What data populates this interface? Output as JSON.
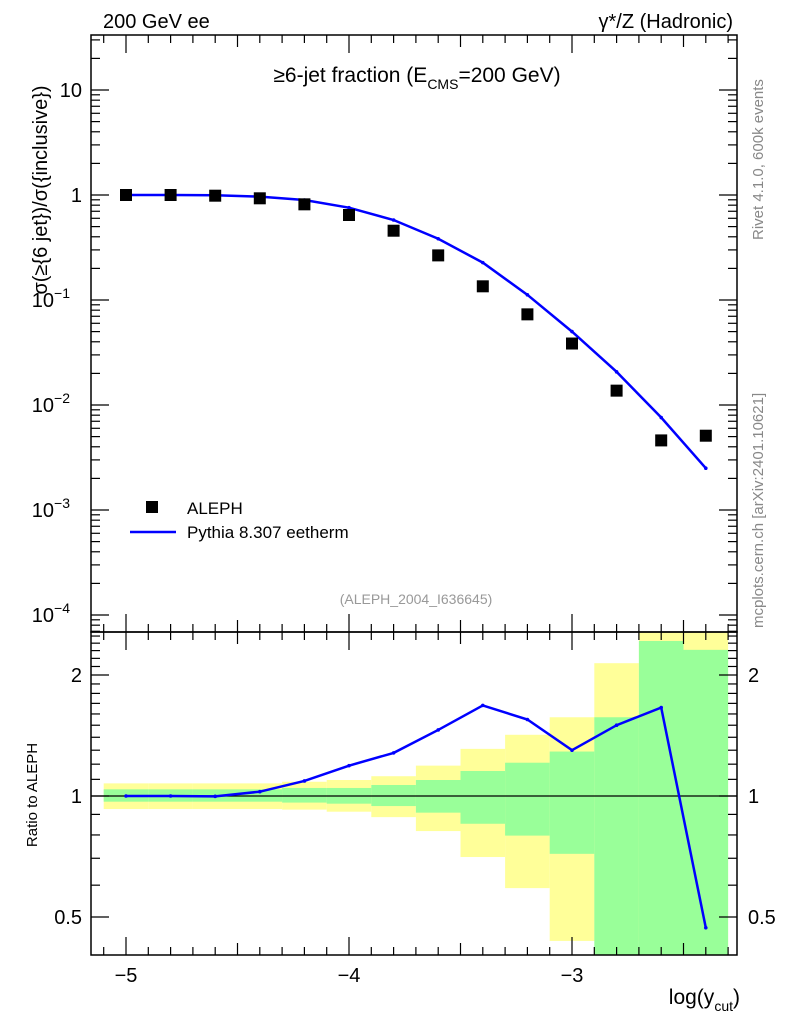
{
  "header": {
    "left_label": "200 GeV ee",
    "right_label": "γ*/Z (Hadronic)"
  },
  "side_labels": {
    "rivet": "Rivet 4.1.0,  600k events",
    "mcplots": "mcplots.cern.ch [arXiv:2401.10621]"
  },
  "colors": {
    "data": "#000000",
    "mc": "#0000ff",
    "band_total": "#ffff99",
    "band_stat": "#99ff99"
  },
  "chart_data": [
    {
      "type": "scatter",
      "title": "≥6-jet fraction (E",
      "title_sub": "CMS",
      "title_tail": "=200 GeV)",
      "ylabel": "σ(≥{6 jet})/σ({inclusive})",
      "xlabel": "log(y",
      "xlabel_sub": "cut",
      "xlabel_tail": ")",
      "yscale": "log",
      "ylim": [
        6e-05,
        33
      ],
      "xlim": [
        -5.157,
        -2.26
      ],
      "watermark": "(ALEPH_2004_I636645)",
      "legend_position": "bottom-left",
      "x_ticks": [
        "−5",
        "−4",
        "−3"
      ],
      "y_ticks": [
        {
          "base": "10",
          "exp": "−4"
        },
        {
          "base": "10",
          "exp": "−3"
        },
        {
          "base": "10",
          "exp": "−2"
        },
        {
          "base": "10",
          "exp": "−1"
        },
        {
          "base": "1",
          "exp": ""
        },
        {
          "base": "10",
          "exp": ""
        }
      ],
      "x": [
        -5.0,
        -4.8,
        -4.6,
        -4.4,
        -4.2,
        -4.0,
        -3.8,
        -3.6,
        -3.4,
        -3.2,
        -3.0,
        -2.8,
        -2.6,
        -2.4
      ],
      "series": [
        {
          "name": "ALEPH",
          "style": "markers",
          "values": [
            1.0,
            1.0,
            0.985,
            0.93,
            0.815,
            0.645,
            0.457,
            0.266,
            0.135,
            0.073,
            0.0385,
            0.0137,
            0.0046,
            0.0051
          ]
        },
        {
          "name": "Pythia 8.307 eetherm",
          "style": "line",
          "values": [
            1.0,
            1.0,
            0.995,
            0.965,
            0.896,
            0.757,
            0.578,
            0.383,
            0.227,
            0.112,
            0.05,
            0.0207,
            0.0076,
            0.0025
          ]
        }
      ]
    },
    {
      "type": "line",
      "ylabel": "Ratio to ALEPH",
      "yscale": "log",
      "ylim": [
        0.4,
        2.56
      ],
      "y_ticks": [
        "0.5",
        "1",
        "2"
      ],
      "bin_edges": [
        -5.1,
        -4.9,
        -4.7,
        -4.5,
        -4.3,
        -4.1,
        -3.9,
        -3.7,
        -3.5,
        -3.3,
        -3.1,
        -2.9,
        -2.7,
        -2.5,
        -2.3
      ],
      "band_total": {
        "low": [
          0.928,
          0.928,
          0.928,
          0.928,
          0.925,
          0.914,
          0.886,
          0.818,
          0.705,
          0.59,
          0.436,
          0.436,
          0.35,
          0.35
        ],
        "high": [
          1.075,
          1.075,
          1.075,
          1.075,
          1.085,
          1.096,
          1.12,
          1.19,
          1.31,
          1.42,
          1.57,
          2.14,
          2.7,
          2.7
        ]
      },
      "band_stat": {
        "low": [
          0.968,
          0.968,
          0.968,
          0.968,
          0.963,
          0.957,
          0.944,
          0.909,
          0.853,
          0.797,
          0.718,
          0.35,
          0.35,
          0.35
        ],
        "high": [
          1.039,
          1.039,
          1.039,
          1.039,
          1.047,
          1.047,
          1.065,
          1.096,
          1.154,
          1.21,
          1.29,
          1.57,
          2.43,
          2.31
        ]
      },
      "series": [
        {
          "name": "Pythia 8.307 eetherm / ALEPH",
          "values": [
            1.0,
            1.0,
            0.998,
            1.025,
            1.09,
            1.19,
            1.28,
            1.46,
            1.68,
            1.55,
            1.3,
            1.5,
            1.66,
            0.47
          ]
        }
      ]
    }
  ]
}
